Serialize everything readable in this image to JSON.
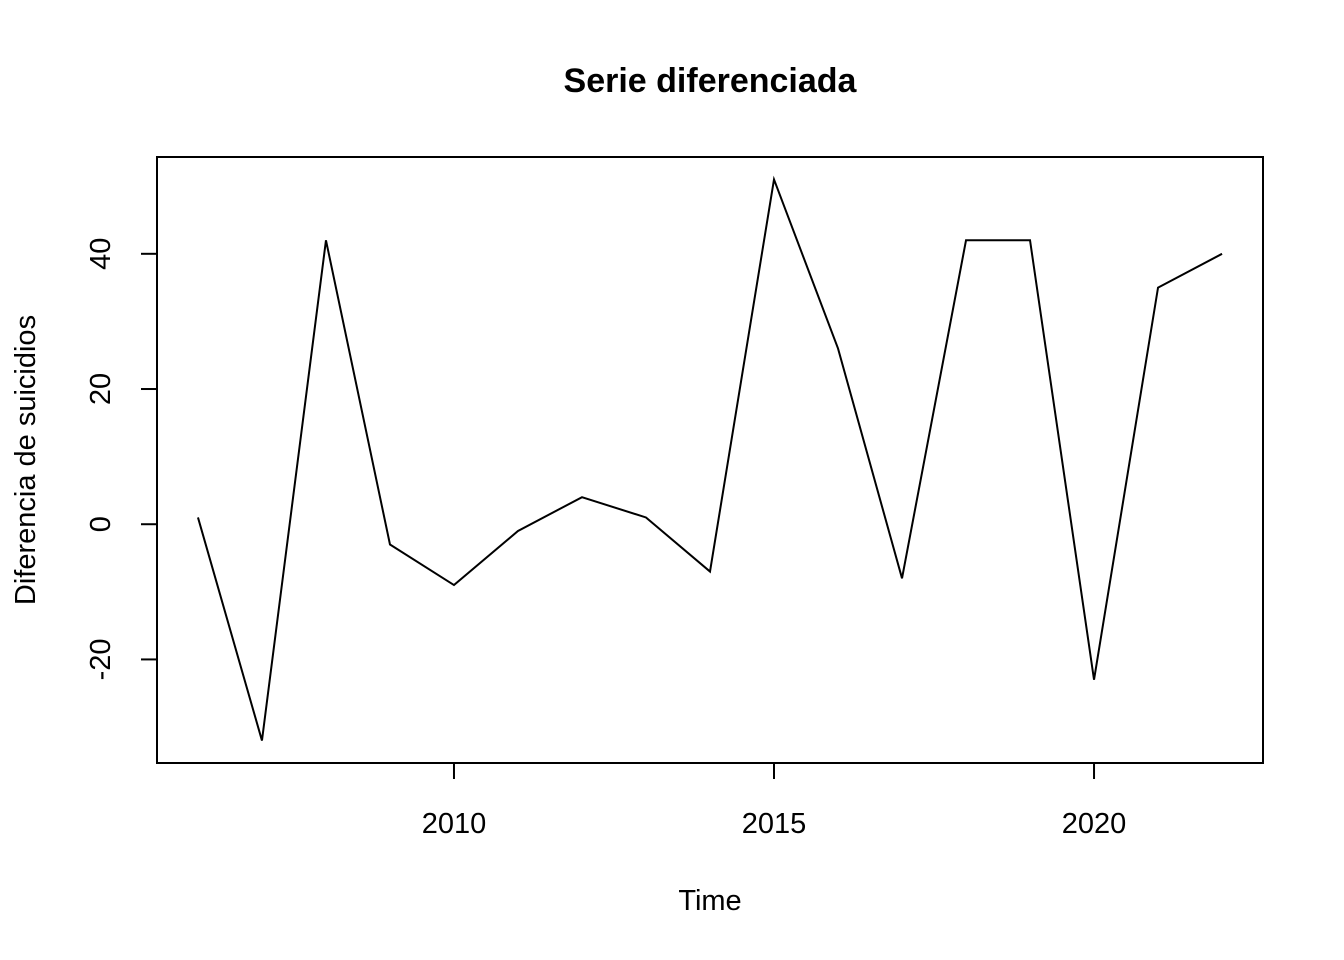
{
  "chart_data": {
    "type": "line",
    "title": "Serie diferenciada",
    "xlabel": "Time",
    "ylabel": "Diferencia de suicidios",
    "x": [
      2006,
      2007,
      2008,
      2009,
      2010,
      2011,
      2012,
      2013,
      2014,
      2015,
      2016,
      2017,
      2018,
      2019,
      2020,
      2021,
      2022
    ],
    "series": [
      {
        "values": [
          1,
          -32,
          42,
          -3,
          -9,
          -1,
          4,
          1,
          -7,
          51,
          26,
          -8,
          42,
          42,
          -23,
          35,
          40
        ]
      }
    ],
    "xlim": [
      2005.36,
      2022.64
    ],
    "ylim": [
      -35.32,
      54.32
    ],
    "xticks": [
      2010,
      2015,
      2020
    ],
    "yticks": [
      -20,
      0,
      20,
      40
    ],
    "xtick_labels": [
      "2010",
      "2015",
      "2020"
    ],
    "ytick_labels": [
      "-20",
      "0",
      "20",
      "40"
    ],
    "grid": false,
    "legend": "none",
    "line_color": "#000000"
  }
}
